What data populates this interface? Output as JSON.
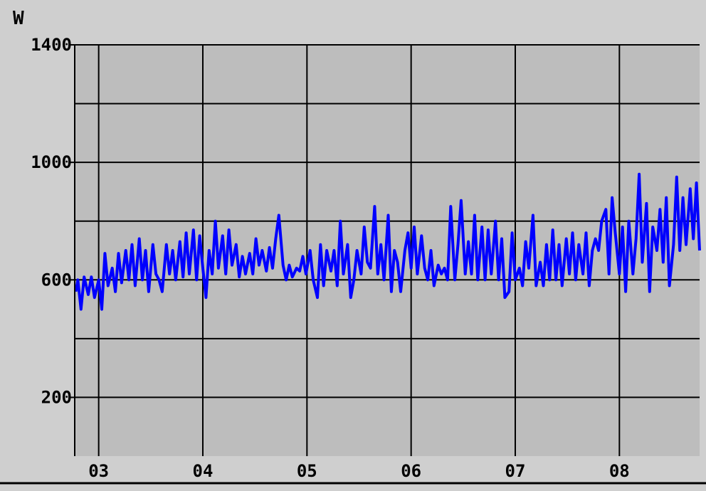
{
  "chart_data": {
    "type": "line",
    "title": "",
    "ylabel": "W",
    "xlabel": "",
    "ylim": [
      0,
      1400
    ],
    "xlim": [
      2.77,
      8.77
    ],
    "y_ticks": [
      200,
      600,
      1000,
      1400
    ],
    "y_tick_labels": [
      "200",
      "600",
      "1000",
      "1400"
    ],
    "y_grid": [
      200,
      400,
      600,
      800,
      1000,
      1200,
      1400
    ],
    "x_ticks": [
      3,
      4,
      5,
      6,
      7,
      8
    ],
    "x_tick_labels": [
      "03",
      "04",
      "05",
      "06",
      "07",
      "08"
    ],
    "grid": true,
    "colors": {
      "background": "#cfcfcf",
      "plot_area": "#bdbdbd",
      "grid": "#000000",
      "series": "#0000ff"
    },
    "series": [
      {
        "values": [
          [
            2.78,
            560
          ],
          [
            2.8,
            600
          ],
          [
            2.83,
            500
          ],
          [
            2.86,
            610
          ],
          [
            2.9,
            550
          ],
          [
            2.93,
            610
          ],
          [
            2.96,
            540
          ],
          [
            3.0,
            600
          ],
          [
            3.03,
            500
          ],
          [
            3.06,
            690
          ],
          [
            3.09,
            580
          ],
          [
            3.13,
            640
          ],
          [
            3.16,
            560
          ],
          [
            3.19,
            690
          ],
          [
            3.22,
            590
          ],
          [
            3.26,
            700
          ],
          [
            3.29,
            600
          ],
          [
            3.32,
            720
          ],
          [
            3.35,
            580
          ],
          [
            3.39,
            740
          ],
          [
            3.42,
            600
          ],
          [
            3.45,
            700
          ],
          [
            3.48,
            560
          ],
          [
            3.52,
            720
          ],
          [
            3.55,
            620
          ],
          [
            3.58,
            600
          ],
          [
            3.61,
            560
          ],
          [
            3.65,
            720
          ],
          [
            3.68,
            620
          ],
          [
            3.71,
            700
          ],
          [
            3.74,
            600
          ],
          [
            3.78,
            730
          ],
          [
            3.81,
            610
          ],
          [
            3.84,
            760
          ],
          [
            3.87,
            620
          ],
          [
            3.91,
            770
          ],
          [
            3.94,
            600
          ],
          [
            3.97,
            750
          ],
          [
            4.0,
            640
          ],
          [
            4.03,
            540
          ],
          [
            4.06,
            700
          ],
          [
            4.09,
            620
          ],
          [
            4.12,
            800
          ],
          [
            4.15,
            640
          ],
          [
            4.19,
            750
          ],
          [
            4.22,
            620
          ],
          [
            4.25,
            770
          ],
          [
            4.28,
            650
          ],
          [
            4.32,
            720
          ],
          [
            4.35,
            610
          ],
          [
            4.38,
            680
          ],
          [
            4.41,
            620
          ],
          [
            4.45,
            690
          ],
          [
            4.48,
            620
          ],
          [
            4.51,
            740
          ],
          [
            4.54,
            650
          ],
          [
            4.57,
            700
          ],
          [
            4.61,
            630
          ],
          [
            4.64,
            710
          ],
          [
            4.67,
            640
          ],
          [
            4.7,
            740
          ],
          [
            4.73,
            820
          ],
          [
            4.77,
            650
          ],
          [
            4.8,
            600
          ],
          [
            4.83,
            650
          ],
          [
            4.86,
            610
          ],
          [
            4.9,
            640
          ],
          [
            4.93,
            630
          ],
          [
            4.96,
            680
          ],
          [
            4.99,
            620
          ],
          [
            5.03,
            700
          ],
          [
            5.06,
            600
          ],
          [
            5.1,
            540
          ],
          [
            5.13,
            720
          ],
          [
            5.16,
            580
          ],
          [
            5.19,
            700
          ],
          [
            5.23,
            630
          ],
          [
            5.26,
            700
          ],
          [
            5.29,
            580
          ],
          [
            5.32,
            800
          ],
          [
            5.35,
            620
          ],
          [
            5.39,
            720
          ],
          [
            5.42,
            540
          ],
          [
            5.45,
            600
          ],
          [
            5.48,
            700
          ],
          [
            5.52,
            620
          ],
          [
            5.55,
            780
          ],
          [
            5.58,
            660
          ],
          [
            5.61,
            640
          ],
          [
            5.65,
            850
          ],
          [
            5.68,
            620
          ],
          [
            5.71,
            720
          ],
          [
            5.74,
            600
          ],
          [
            5.78,
            820
          ],
          [
            5.81,
            560
          ],
          [
            5.84,
            700
          ],
          [
            5.87,
            660
          ],
          [
            5.9,
            560
          ],
          [
            5.94,
            700
          ],
          [
            5.97,
            760
          ],
          [
            6.0,
            640
          ],
          [
            6.03,
            780
          ],
          [
            6.06,
            620
          ],
          [
            6.1,
            750
          ],
          [
            6.13,
            640
          ],
          [
            6.16,
            600
          ],
          [
            6.19,
            700
          ],
          [
            6.22,
            580
          ],
          [
            6.26,
            650
          ],
          [
            6.29,
            620
          ],
          [
            6.32,
            640
          ],
          [
            6.35,
            600
          ],
          [
            6.38,
            850
          ],
          [
            6.42,
            600
          ],
          [
            6.45,
            720
          ],
          [
            6.48,
            870
          ],
          [
            6.52,
            620
          ],
          [
            6.55,
            730
          ],
          [
            6.58,
            620
          ],
          [
            6.61,
            820
          ],
          [
            6.64,
            600
          ],
          [
            6.68,
            780
          ],
          [
            6.71,
            600
          ],
          [
            6.74,
            770
          ],
          [
            6.77,
            620
          ],
          [
            6.81,
            800
          ],
          [
            6.84,
            600
          ],
          [
            6.87,
            740
          ],
          [
            6.9,
            540
          ],
          [
            6.94,
            560
          ],
          [
            6.97,
            760
          ],
          [
            7.0,
            600
          ],
          [
            7.04,
            640
          ],
          [
            7.07,
            580
          ],
          [
            7.1,
            730
          ],
          [
            7.13,
            640
          ],
          [
            7.17,
            820
          ],
          [
            7.2,
            580
          ],
          [
            7.24,
            660
          ],
          [
            7.27,
            580
          ],
          [
            7.3,
            720
          ],
          [
            7.33,
            600
          ],
          [
            7.36,
            770
          ],
          [
            7.39,
            600
          ],
          [
            7.42,
            720
          ],
          [
            7.45,
            580
          ],
          [
            7.49,
            740
          ],
          [
            7.52,
            620
          ],
          [
            7.55,
            760
          ],
          [
            7.58,
            600
          ],
          [
            7.61,
            720
          ],
          [
            7.65,
            620
          ],
          [
            7.68,
            760
          ],
          [
            7.71,
            580
          ],
          [
            7.74,
            700
          ],
          [
            7.77,
            740
          ],
          [
            7.8,
            700
          ],
          [
            7.83,
            800
          ],
          [
            7.87,
            840
          ],
          [
            7.9,
            620
          ],
          [
            7.93,
            880
          ],
          [
            7.96,
            760
          ],
          [
            8.0,
            620
          ],
          [
            8.03,
            780
          ],
          [
            8.06,
            560
          ],
          [
            8.09,
            800
          ],
          [
            8.13,
            620
          ],
          [
            8.16,
            740
          ],
          [
            8.19,
            960
          ],
          [
            8.22,
            660
          ],
          [
            8.26,
            860
          ],
          [
            8.29,
            560
          ],
          [
            8.32,
            780
          ],
          [
            8.36,
            700
          ],
          [
            8.39,
            840
          ],
          [
            8.42,
            660
          ],
          [
            8.45,
            880
          ],
          [
            8.48,
            580
          ],
          [
            8.52,
            720
          ],
          [
            8.55,
            950
          ],
          [
            8.58,
            700
          ],
          [
            8.61,
            880
          ],
          [
            8.64,
            720
          ],
          [
            8.68,
            910
          ],
          [
            8.71,
            740
          ],
          [
            8.74,
            930
          ],
          [
            8.77,
            700
          ]
        ]
      }
    ]
  }
}
